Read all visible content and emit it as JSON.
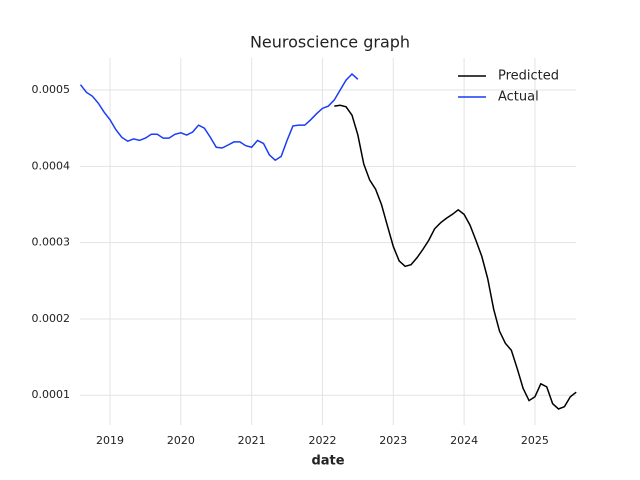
{
  "chart_data": {
    "type": "line",
    "title": "Neuroscience graph",
    "x_label": "date",
    "xlim": [
      2018.576,
      2025.58
    ],
    "xticks": [
      2019,
      2020,
      2021,
      2022,
      2023,
      2024,
      2025
    ],
    "ylim": [
      6.1e-05,
      0.000542
    ],
    "yticks": [
      0.0001,
      0.0002,
      0.0003,
      0.0004,
      0.0005
    ],
    "grid": true,
    "legend": "upper right",
    "series": [
      {
        "name": "Predicted",
        "color": "#000000",
        "x": [
          2022.167,
          2022.25,
          2022.333,
          2022.417,
          2022.5,
          2022.583,
          2022.667,
          2022.75,
          2022.833,
          2022.917,
          2023,
          2023.083,
          2023.167,
          2023.25,
          2023.333,
          2023.417,
          2023.5,
          2023.583,
          2023.667,
          2023.75,
          2023.833,
          2023.917,
          2024,
          2024.083,
          2024.167,
          2024.25,
          2024.333,
          2024.417,
          2024.5,
          2024.583,
          2024.667,
          2024.75,
          2024.833,
          2024.917,
          2025,
          2025.083,
          2025.167,
          2025.25,
          2025.333,
          2025.417,
          2025.5,
          2025.583
        ],
        "values": [
          0.000479,
          0.00048,
          0.000478,
          0.000467,
          0.000441,
          0.000403,
          0.000382,
          0.00037,
          0.00035,
          0.000322,
          0.000295,
          0.000276,
          0.000269,
          0.000271,
          0.00028,
          0.000291,
          0.000303,
          0.000318,
          0.000326,
          0.000332,
          0.000337,
          0.000343,
          0.000337,
          0.000323,
          0.000303,
          0.000282,
          0.000253,
          0.000213,
          0.000184,
          0.000168,
          0.000159,
          0.000135,
          0.000109,
          9.3e-05,
          9.8e-05,
          0.000115,
          0.000111,
          8.9e-05,
          8.2e-05,
          8.5e-05,
          9.8e-05,
          0.000104
        ]
      },
      {
        "name": "Actual",
        "color": "#1a3cf5",
        "x": [
          2018.583,
          2018.667,
          2018.75,
          2018.833,
          2018.917,
          2019,
          2019.083,
          2019.167,
          2019.25,
          2019.333,
          2019.417,
          2019.5,
          2019.583,
          2019.667,
          2019.75,
          2019.833,
          2019.917,
          2020,
          2020.083,
          2020.167,
          2020.25,
          2020.333,
          2020.417,
          2020.5,
          2020.583,
          2020.667,
          2020.75,
          2020.833,
          2020.917,
          2021,
          2021.083,
          2021.167,
          2021.25,
          2021.333,
          2021.417,
          2021.5,
          2021.583,
          2021.667,
          2021.75,
          2021.833,
          2021.917,
          2022,
          2022.083,
          2022.167,
          2022.25,
          2022.333,
          2022.417,
          2022.5
        ],
        "values": [
          0.000507,
          0.000497,
          0.000492,
          0.000483,
          0.000471,
          0.000461,
          0.000448,
          0.000438,
          0.000433,
          0.000436,
          0.000434,
          0.000437,
          0.000442,
          0.000442,
          0.000437,
          0.000437,
          0.000442,
          0.000444,
          0.000441,
          0.000445,
          0.000454,
          0.00045,
          0.000438,
          0.000425,
          0.000424,
          0.000428,
          0.000432,
          0.000432,
          0.000427,
          0.000425,
          0.000434,
          0.00043,
          0.000415,
          0.000408,
          0.000413,
          0.000434,
          0.000453,
          0.000454,
          0.000454,
          0.000461,
          0.000469,
          0.000476,
          0.000479,
          0.000487,
          0.0005,
          0.000513,
          0.000521,
          0.000514
        ]
      }
    ]
  }
}
